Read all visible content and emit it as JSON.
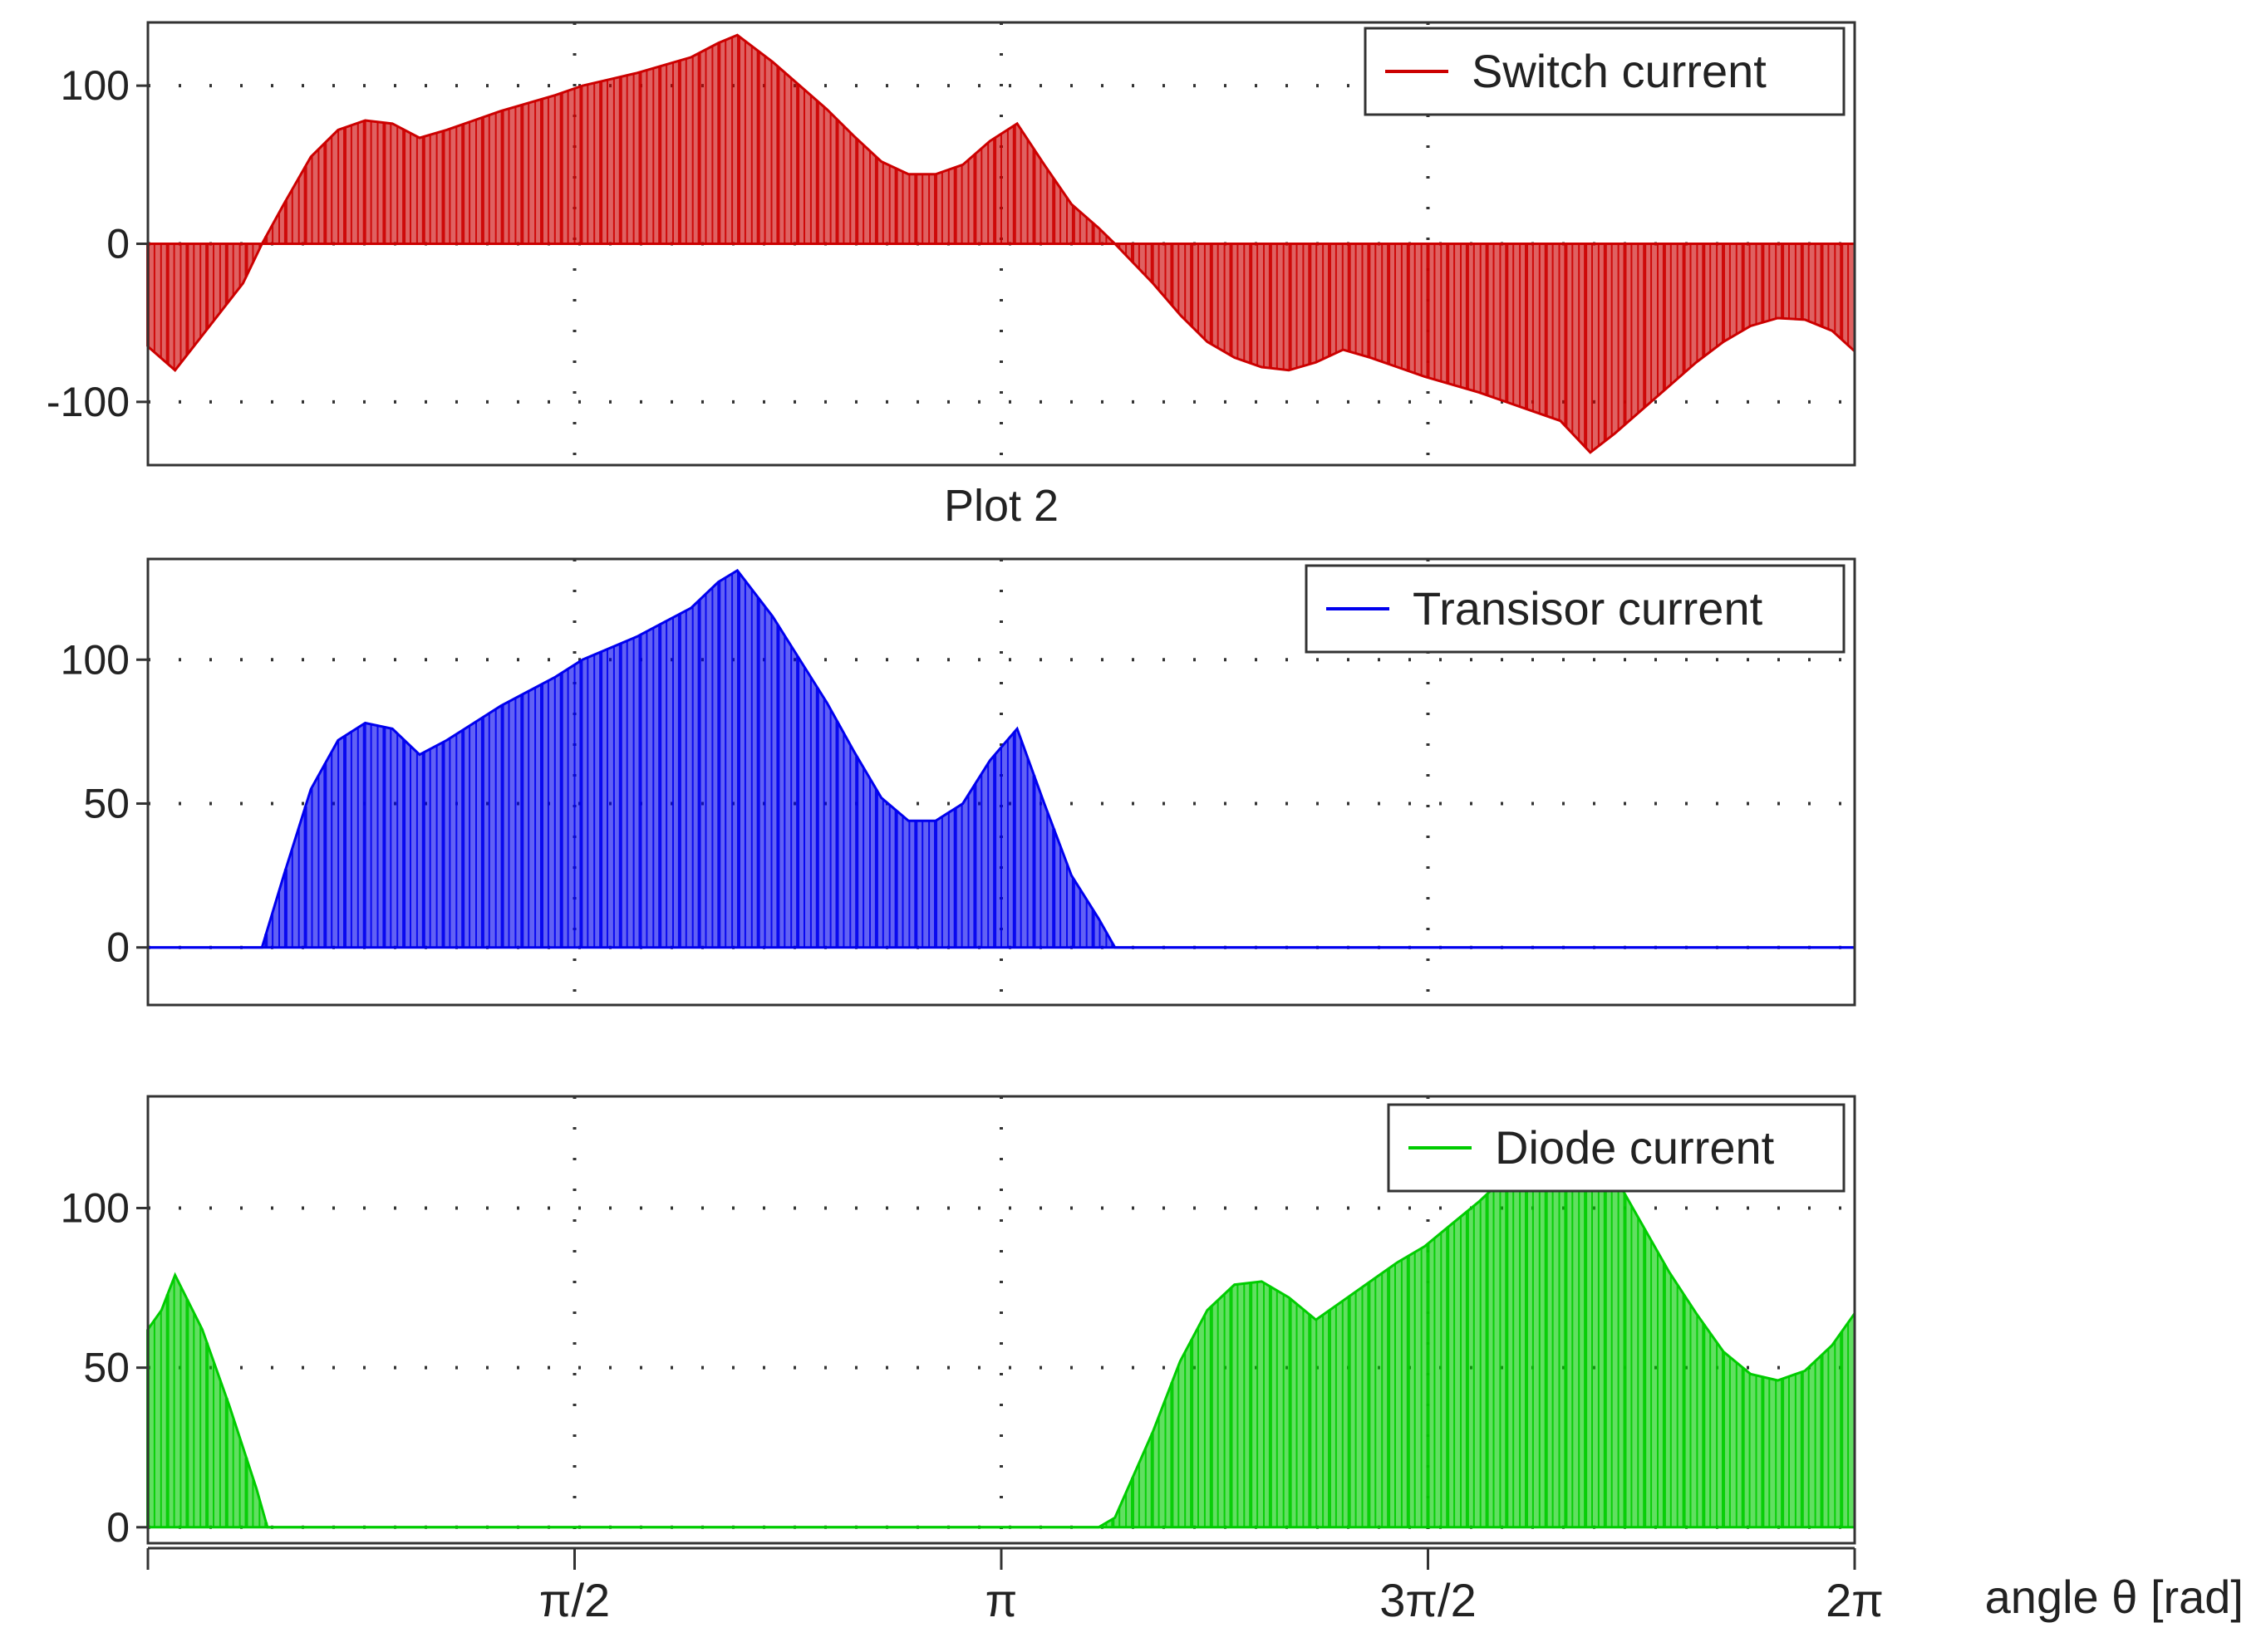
{
  "figure": {
    "x_axis_label": "angle θ [rad]",
    "x_ticks": [
      {
        "value": 0,
        "label": ""
      },
      {
        "value": 1.5708,
        "label": "π/2"
      },
      {
        "value": 3.1416,
        "label": "π"
      },
      {
        "value": 4.7124,
        "label": "3π/2"
      },
      {
        "value": 6.2832,
        "label": "2π"
      }
    ]
  },
  "chart_data": [
    {
      "type": "area",
      "title": "",
      "legend": "Switch current",
      "legend_position": "top-right",
      "color": "#cc0000",
      "grid": true,
      "xlim": [
        0,
        6.2832
      ],
      "ylim": [
        -140,
        140
      ],
      "y_ticks": [
        {
          "value": 100,
          "label": "100"
        },
        {
          "value": 0,
          "label": "0"
        },
        {
          "value": -100,
          "label": "-100"
        }
      ],
      "series": [
        {
          "name": "Switch current",
          "x": [
            0,
            0.1,
            0.35,
            0.42,
            0.5,
            0.6,
            0.7,
            0.8,
            0.9,
            1.0,
            1.1,
            1.2,
            1.3,
            1.4,
            1.5,
            1.6,
            1.7,
            1.8,
            1.9,
            2.0,
            2.1,
            2.17,
            2.3,
            2.4,
            2.5,
            2.6,
            2.7,
            2.8,
            2.9,
            3.0,
            3.1,
            3.2,
            3.3,
            3.4,
            3.5,
            3.56,
            3.7,
            3.8,
            3.9,
            4.0,
            4.1,
            4.2,
            4.3,
            4.4,
            4.5,
            4.6,
            4.7,
            4.8,
            4.9,
            5.0,
            5.1,
            5.2,
            5.31,
            5.4,
            5.5,
            5.6,
            5.7,
            5.8,
            5.9,
            6.0,
            6.1,
            6.2,
            6.2832
          ],
          "values": [
            -65,
            -80,
            -25,
            0,
            25,
            55,
            72,
            78,
            76,
            67,
            72,
            78,
            84,
            89,
            94,
            100,
            104,
            108,
            113,
            118,
            127,
            132,
            115,
            100,
            85,
            68,
            52,
            44,
            44,
            50,
            65,
            76,
            50,
            25,
            10,
            0,
            -25,
            -45,
            -62,
            -72,
            -78,
            -80,
            -75,
            -67,
            -72,
            -78,
            -84,
            -89,
            -94,
            -100,
            -106,
            -112,
            -132,
            -120,
            -105,
            -90,
            -75,
            -62,
            -52,
            -47,
            -48,
            -55,
            -68
          ]
        }
      ]
    },
    {
      "type": "area",
      "title": "Plot 2",
      "legend": "Transisor current",
      "legend_position": "top-right",
      "color": "#0000ee",
      "grid": true,
      "xlim": [
        0,
        6.2832
      ],
      "ylim": [
        -20,
        135
      ],
      "y_ticks": [
        {
          "value": 100,
          "label": "100"
        },
        {
          "value": 50,
          "label": "50"
        },
        {
          "value": 0,
          "label": "0"
        }
      ],
      "series": [
        {
          "name": "Transisor current",
          "x": [
            0,
            0.3,
            0.42,
            0.5,
            0.6,
            0.7,
            0.8,
            0.9,
            1.0,
            1.1,
            1.2,
            1.3,
            1.4,
            1.5,
            1.6,
            1.7,
            1.8,
            1.9,
            2.0,
            2.1,
            2.17,
            2.3,
            2.4,
            2.5,
            2.6,
            2.7,
            2.8,
            2.9,
            3.0,
            3.1,
            3.2,
            3.3,
            3.4,
            3.5,
            3.56,
            4.0,
            5.0,
            6.2832
          ],
          "values": [
            0,
            0,
            0,
            25,
            55,
            72,
            78,
            76,
            67,
            72,
            78,
            84,
            89,
            94,
            100,
            104,
            108,
            113,
            118,
            127,
            131,
            115,
            100,
            85,
            68,
            52,
            44,
            44,
            50,
            65,
            76,
            50,
            25,
            10,
            0,
            0,
            0,
            0
          ]
        }
      ]
    },
    {
      "type": "area",
      "title": "",
      "legend": "Diode current",
      "legend_position": "top-right",
      "color": "#00cc00",
      "grid": true,
      "xlim": [
        0,
        6.2832
      ],
      "ylim": [
        -5,
        135
      ],
      "y_ticks": [
        {
          "value": 100,
          "label": "100"
        },
        {
          "value": 50,
          "label": "50"
        },
        {
          "value": 0,
          "label": "0"
        }
      ],
      "series": [
        {
          "name": "Diode current",
          "x": [
            0,
            0.05,
            0.1,
            0.2,
            0.3,
            0.4,
            0.44,
            1.0,
            2.0,
            3.0,
            3.5,
            3.56,
            3.7,
            3.8,
            3.9,
            4.0,
            4.1,
            4.2,
            4.3,
            4.4,
            4.5,
            4.6,
            4.7,
            4.8,
            4.9,
            5.0,
            5.1,
            5.2,
            5.31,
            5.4,
            5.5,
            5.6,
            5.7,
            5.8,
            5.9,
            6.0,
            6.1,
            6.2,
            6.2832
          ],
          "values": [
            62,
            68,
            79,
            62,
            38,
            12,
            0,
            0,
            0,
            0,
            0,
            3,
            30,
            52,
            68,
            76,
            77,
            72,
            65,
            71,
            77,
            83,
            88,
            95,
            102,
            110,
            110,
            110,
            110,
            110,
            95,
            80,
            67,
            55,
            48,
            46,
            49,
            57,
            67
          ]
        }
      ]
    }
  ]
}
